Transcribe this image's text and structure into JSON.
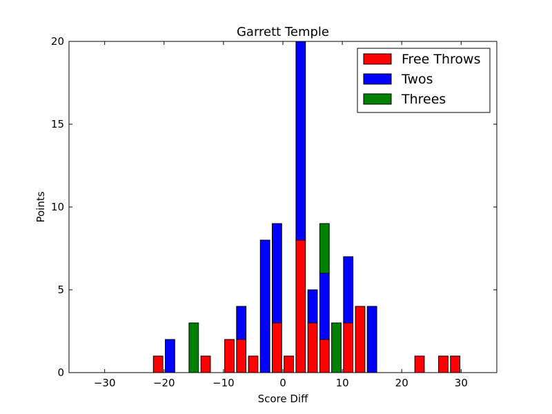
{
  "chart_data": {
    "type": "bar",
    "stacked": true,
    "title": "Garrett Temple",
    "xlabel": "Score Diff",
    "ylabel": "Points",
    "xlim": [
      -36,
      36
    ],
    "ylim": [
      0,
      20
    ],
    "x_ticks": [
      -30,
      -20,
      -10,
      0,
      10,
      20,
      30
    ],
    "x_tick_labels": [
      "−30",
      "−20",
      "−10",
      "0",
      "10",
      "20",
      "30"
    ],
    "y_ticks": [
      0,
      5,
      10,
      15,
      20
    ],
    "y_tick_labels": [
      "0",
      "5",
      "10",
      "15",
      "20"
    ],
    "bar_width": 1.6,
    "grid": false,
    "legend_position": "top-right",
    "x": [
      -35,
      -33,
      -31,
      -29,
      -27,
      -25,
      -23,
      -21,
      -19,
      -17,
      -15,
      -13,
      -11,
      -9,
      -7,
      -5,
      -3,
      -1,
      1,
      3,
      5,
      7,
      9,
      11,
      13,
      15,
      17,
      19,
      21,
      23,
      25,
      27,
      29,
      31,
      33,
      35
    ],
    "series": [
      {
        "name": "Free Throws",
        "color": "#ff0000",
        "values": [
          0,
          0,
          0,
          0,
          0,
          0,
          0,
          1,
          0,
          0,
          0,
          1,
          0,
          2,
          2,
          1,
          0,
          3,
          1,
          8,
          3,
          2,
          0,
          3,
          4,
          0,
          0,
          0,
          0,
          1,
          0,
          1,
          1,
          0,
          0,
          0
        ]
      },
      {
        "name": "Twos",
        "color": "#0000ff",
        "values": [
          0,
          0,
          0,
          0,
          0,
          0,
          0,
          0,
          2,
          0,
          0,
          0,
          0,
          0,
          2,
          0,
          8,
          6,
          0,
          12,
          2,
          4,
          0,
          4,
          0,
          4,
          0,
          0,
          0,
          0,
          0,
          0,
          0,
          0,
          0,
          0
        ]
      },
      {
        "name": "Threes",
        "color": "#008000",
        "values": [
          0,
          0,
          0,
          0,
          0,
          0,
          0,
          0,
          0,
          0,
          3,
          0,
          0,
          0,
          0,
          0,
          0,
          0,
          0,
          0,
          0,
          3,
          3,
          0,
          0,
          0,
          0,
          0,
          0,
          0,
          0,
          0,
          0,
          0,
          0,
          0
        ]
      }
    ]
  }
}
